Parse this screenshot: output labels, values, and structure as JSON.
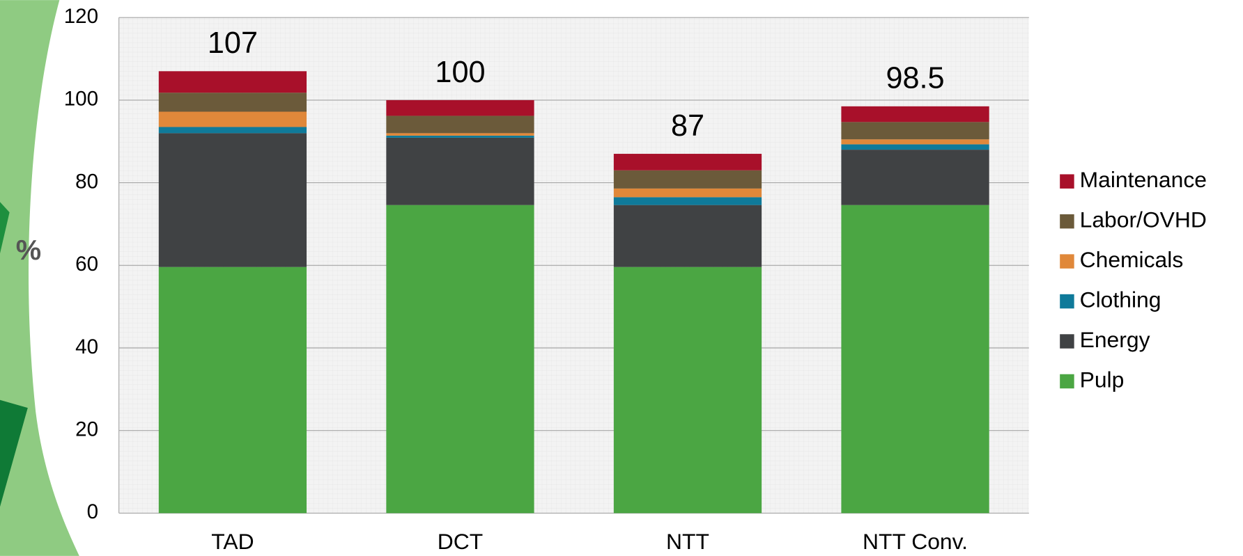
{
  "chart_data": {
    "type": "stacked_bar",
    "y_label": "%",
    "categories": [
      "TAD",
      "DCT",
      "NTT",
      "NTT Conv."
    ],
    "series": [
      {
        "name": "Pulp",
        "color": "#4ba643",
        "values": [
          59.6,
          74.6,
          59.6,
          74.6
        ]
      },
      {
        "name": "Energy",
        "color": "#404244",
        "values": [
          32.4,
          16.3,
          15.0,
          13.4
        ]
      },
      {
        "name": "Clothing",
        "color": "#0f7a9a",
        "values": [
          1.5,
          0.5,
          1.9,
          1.3
        ]
      },
      {
        "name": "Chemicals",
        "color": "#e0883a",
        "values": [
          3.7,
          0.6,
          2.1,
          1.2
        ]
      },
      {
        "name": "Labor/OVHD",
        "color": "#6b5a3a",
        "values": [
          4.6,
          4.2,
          4.4,
          4.2
        ]
      },
      {
        "name": "Maintenance",
        "color": "#a8102a",
        "values": [
          5.2,
          3.8,
          4.0,
          3.8
        ]
      }
    ],
    "totals": [
      107,
      100,
      87,
      98.5
    ],
    "ylim": [
      0,
      120
    ],
    "yticks": [
      0,
      20,
      40,
      60,
      80,
      100,
      120
    ],
    "grid": true,
    "legend": "right"
  }
}
